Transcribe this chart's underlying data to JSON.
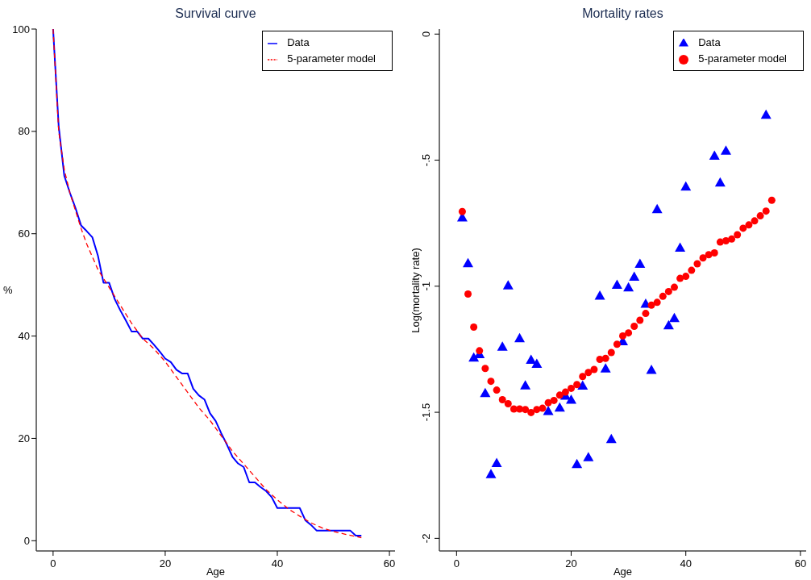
{
  "chart_data": [
    {
      "type": "line",
      "title": "Survival curve",
      "xlabel": "Age",
      "ylabel": "%",
      "xlim": [
        -3,
        61
      ],
      "ylim": [
        -2,
        100
      ],
      "xticks": [
        0,
        20,
        40,
        60
      ],
      "yticks": [
        0,
        20,
        40,
        60,
        80,
        100
      ],
      "grid": false,
      "legend": "top right",
      "marker": "none",
      "series": [
        {
          "name": "Data",
          "color": "#0000ff",
          "line_style": "solid",
          "x": [
            0,
            1,
            2,
            3,
            4,
            5,
            6,
            7,
            8,
            9,
            10,
            11,
            12,
            13,
            14,
            15,
            16,
            17,
            18,
            19,
            20,
            21,
            22,
            23,
            24,
            25,
            26,
            27,
            28,
            29,
            30,
            31,
            32,
            33,
            34,
            35,
            36,
            37,
            38,
            39,
            40,
            41,
            42,
            43,
            44,
            45,
            46,
            47,
            48,
            49,
            50,
            51,
            52,
            53,
            54,
            55
          ],
          "values": [
            100,
            81,
            71.3,
            68,
            65,
            61.6,
            60.5,
            59.3,
            55.7,
            50.4,
            50.4,
            47.2,
            45,
            43,
            40.9,
            40.9,
            39.5,
            39.5,
            38.3,
            37,
            35.6,
            34.9,
            33.4,
            32.7,
            32.7,
            29.7,
            28.4,
            27.6,
            24.9,
            23.4,
            21,
            18.8,
            16.4,
            15.1,
            14.4,
            11.4,
            11.4,
            10.5,
            9.7,
            8.5,
            6.4,
            6.4,
            6.4,
            6.4,
            6.4,
            4,
            3.1,
            2,
            2,
            2,
            2,
            2,
            2,
            2,
            1,
            1
          ]
        },
        {
          "name": "5-parameter model",
          "color": "#ff0000",
          "line_style": "dashed",
          "x": [
            0,
            1,
            2,
            3,
            4,
            5,
            6,
            8,
            10,
            12,
            14,
            16,
            18,
            20,
            22,
            24,
            26,
            28,
            30,
            32,
            34,
            36,
            38,
            40,
            42,
            44,
            46,
            48,
            50,
            52,
            55
          ],
          "values": [
            100,
            80,
            72.5,
            68,
            64.5,
            61,
            58,
            53,
            49.5,
            46,
            42.5,
            39.5,
            37.5,
            35,
            32,
            29,
            26,
            23.5,
            20.5,
            17.5,
            15,
            12.5,
            10,
            8,
            6.2,
            4.8,
            3.5,
            2.5,
            1.8,
            1.3,
            0.6
          ]
        }
      ]
    },
    {
      "type": "scatter",
      "title": "Mortality rates",
      "xlabel": "Age",
      "ylabel": "Log(mortality rate)",
      "xlim": [
        -3,
        61
      ],
      "ylim": [
        -2.05,
        0.02
      ],
      "xticks": [
        0,
        20,
        40,
        60
      ],
      "yticks": [
        {
          "value": 0,
          "label": "0"
        },
        {
          "value": -0.5,
          "label": "-.5"
        },
        {
          "value": -1,
          "label": "-1"
        },
        {
          "value": -1.5,
          "label": "-1.5"
        },
        {
          "value": -2,
          "label": "-2"
        }
      ],
      "grid": false,
      "legend": "top right",
      "series": [
        {
          "name": "Data",
          "color": "#0000ff",
          "marker": "triangle",
          "x": [
            1,
            2,
            3,
            4,
            5,
            6,
            7,
            8,
            9,
            11,
            12,
            13,
            14,
            16,
            18,
            19,
            20,
            21,
            22,
            23,
            25,
            26,
            27,
            28,
            29,
            30,
            31,
            32,
            33,
            34,
            35,
            37,
            38,
            39,
            40,
            45,
            46,
            47,
            54
          ],
          "values": [
            -0.727,
            -0.909,
            -1.283,
            -1.269,
            -1.424,
            -1.745,
            -1.701,
            -1.24,
            -0.997,
            -1.206,
            -1.393,
            -1.292,
            -1.308,
            -1.495,
            -1.481,
            -1.434,
            -1.45,
            -1.705,
            -1.394,
            -1.678,
            -1.037,
            -1.326,
            -1.606,
            -0.994,
            -1.218,
            -1.005,
            -0.962,
            -0.911,
            -1.069,
            -1.332,
            -0.694,
            -1.155,
            -1.126,
            -0.847,
            -0.605,
            -0.482,
            -0.589,
            -0.462,
            -0.32
          ]
        },
        {
          "name": "5-parameter model",
          "color": "#ff0000",
          "marker": "circle",
          "x": [
            1,
            2,
            3,
            4,
            5,
            6,
            7,
            8,
            9,
            10,
            11,
            12,
            13,
            14,
            15,
            16,
            17,
            18,
            19,
            20,
            21,
            22,
            23,
            24,
            25,
            26,
            27,
            28,
            29,
            30,
            31,
            32,
            33,
            34,
            35,
            36,
            37,
            38,
            39,
            40,
            41,
            42,
            43,
            44,
            45,
            46,
            47,
            48,
            49,
            50,
            51,
            52,
            53,
            54,
            55
          ],
          "values": [
            -0.704,
            -1.031,
            -1.162,
            -1.256,
            -1.326,
            -1.377,
            -1.412,
            -1.45,
            -1.466,
            -1.487,
            -1.487,
            -1.489,
            -1.501,
            -1.489,
            -1.484,
            -1.462,
            -1.453,
            -1.432,
            -1.42,
            -1.405,
            -1.39,
            -1.358,
            -1.342,
            -1.33,
            -1.29,
            -1.286,
            -1.263,
            -1.23,
            -1.197,
            -1.185,
            -1.159,
            -1.135,
            -1.108,
            -1.075,
            -1.064,
            -1.04,
            -1.021,
            -1.004,
            -0.969,
            -0.961,
            -0.937,
            -0.911,
            -0.888,
            -0.875,
            -0.868,
            -0.825,
            -0.82,
            -0.813,
            -0.796,
            -0.77,
            -0.757,
            -0.741,
            -0.721,
            -0.702,
            -0.659
          ]
        }
      ]
    }
  ]
}
